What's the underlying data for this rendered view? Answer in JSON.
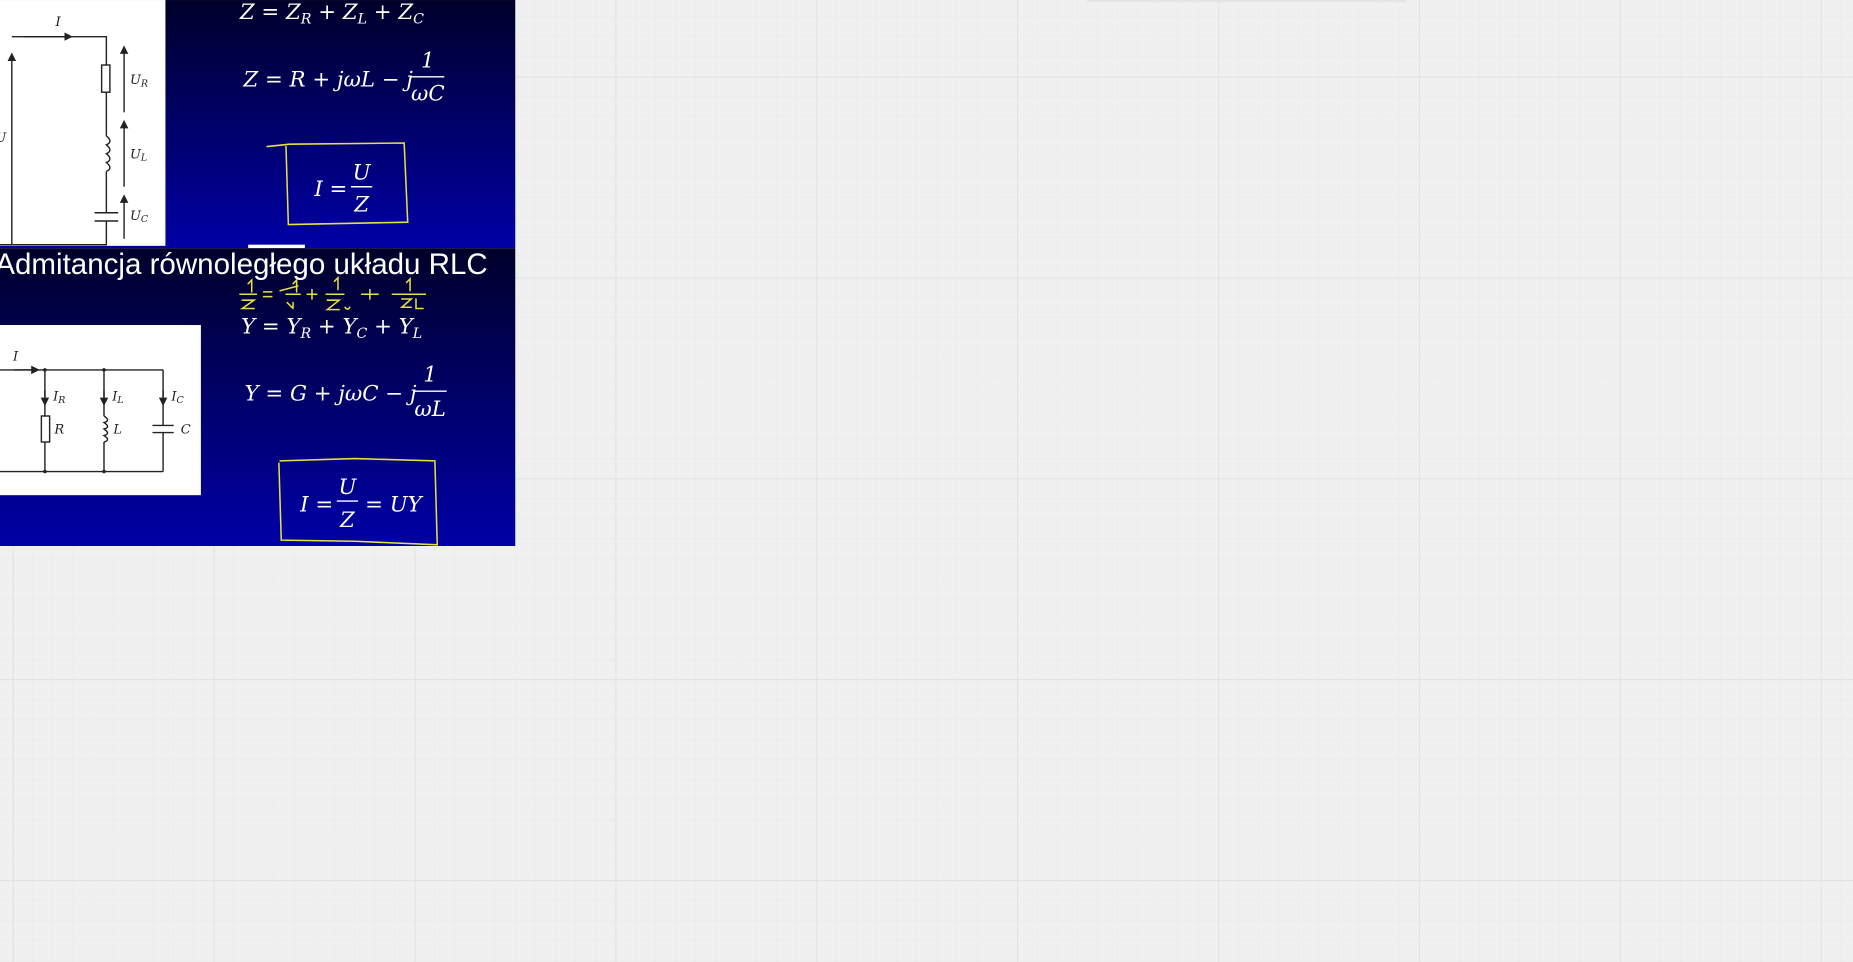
{
  "slide1": {
    "circuit": [
      {
        "main": "I"
      },
      {
        "main": "U"
      },
      {
        "main": "U",
        "sub": "R"
      },
      {
        "main": "U",
        "sub": "L"
      },
      {
        "main": "U",
        "sub": "C"
      }
    ],
    "formula1": [
      "Z = Z",
      "R",
      " + Z",
      "L",
      " + Z",
      "C"
    ],
    "formula2": {
      "text": "Z = R + jωL − j",
      "num": "1",
      "den": "ωC"
    },
    "formula3": {
      "text": "I =",
      "num": "U",
      "den": "Z"
    }
  },
  "slide2": {
    "title": "Admitancja równoległego układu RLC",
    "circuit": [
      {
        "main": "I"
      },
      {
        "main": "I",
        "sub": "R"
      },
      {
        "main": "I",
        "sub": "L"
      },
      {
        "main": "I",
        "sub": "C"
      },
      {
        "main": "R"
      },
      {
        "main": "L"
      },
      {
        "main": "C"
      }
    ],
    "formula1": [
      "Y = Y",
      "R",
      " + Y",
      "C",
      " + Y",
      "L"
    ],
    "formula2": {
      "text": "Y = G + jωC − j",
      "num": "1",
      "den": "ωL"
    },
    "formula3": {
      "text": "I =",
      "num": "U",
      "den": "Z",
      "tail": "= UY"
    }
  }
}
